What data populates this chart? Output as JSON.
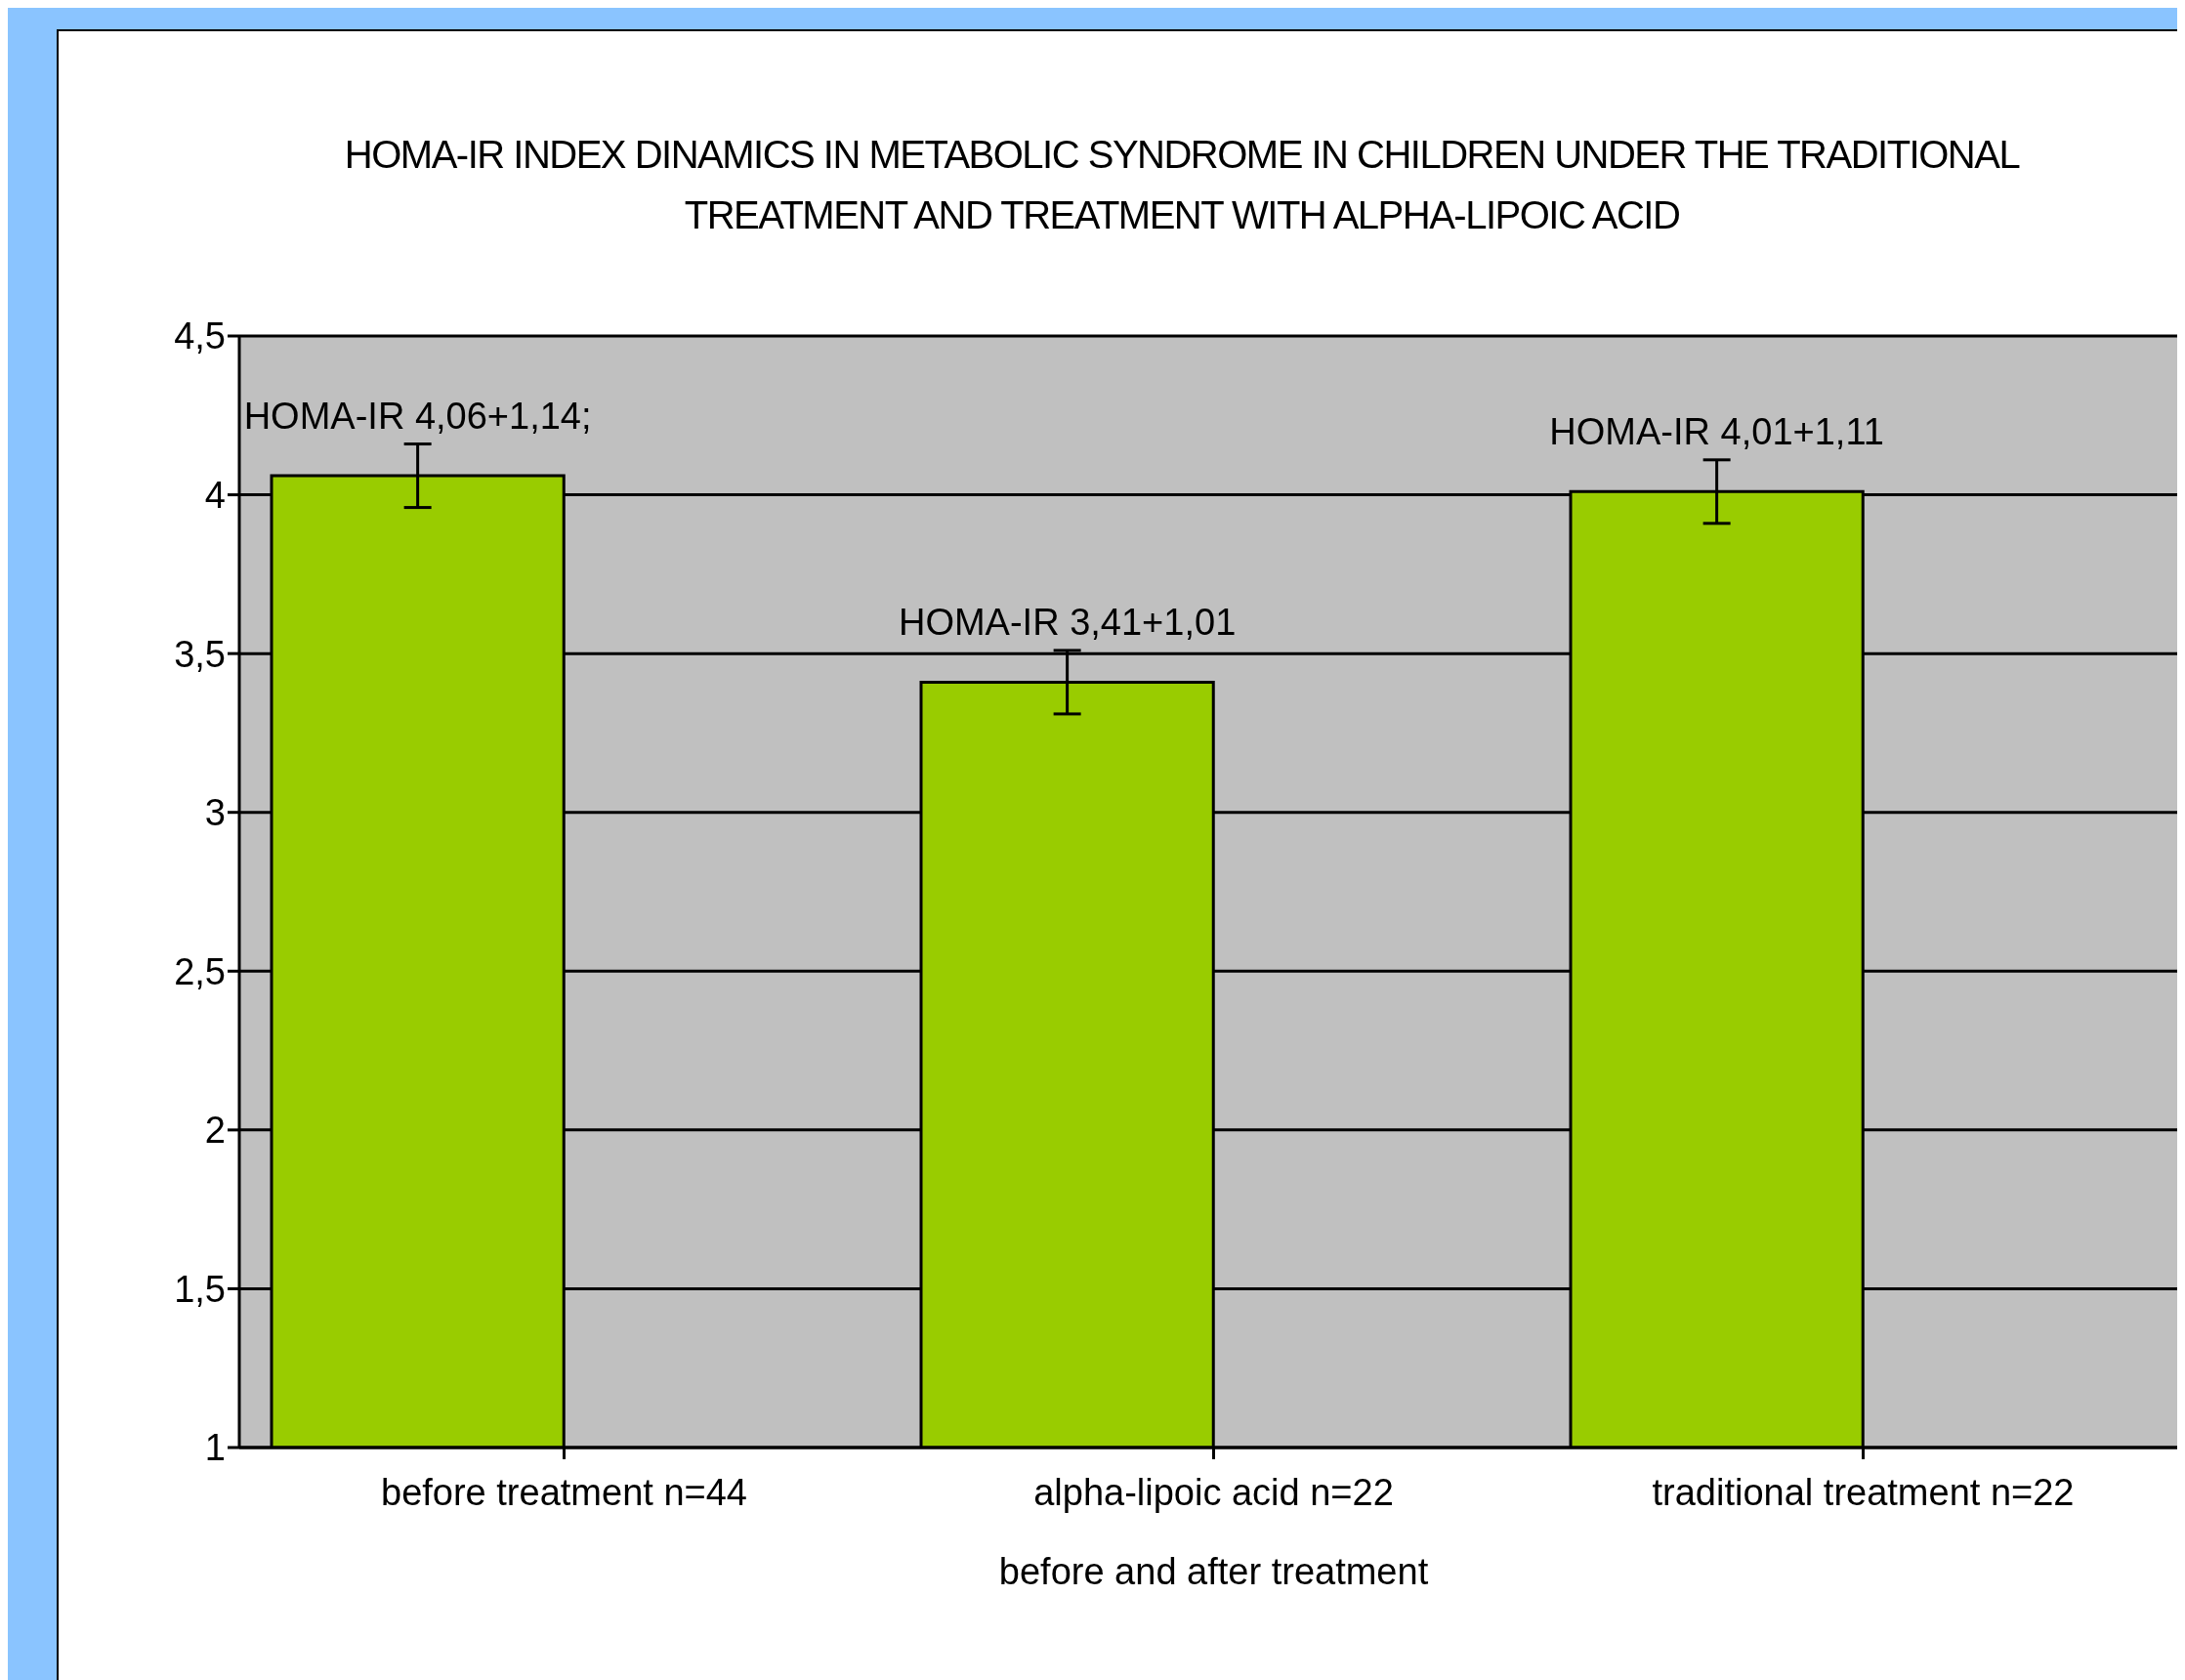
{
  "chart_data": {
    "type": "bar",
    "title": "HOMA-IR INDEX DINAMICS IN METABOLIC SYNDROME IN CHILDREN UNDER THE TRADITIONAL TREATMENT AND TREATMENT WITH ALPHA-LIPOIC ACID",
    "xlabel": "before and after treatment",
    "categories": [
      "before treatment n=44",
      "alpha-lipoic acid n=22",
      "traditional treatment n=22"
    ],
    "values": [
      4.06,
      3.41,
      4.01
    ],
    "errors": [
      0.1,
      0.1,
      0.1
    ],
    "value_labels": [
      "HOMA-IR 4,06+1,14;",
      "HOMA-IR 3,41+1,01",
      "HOMA-IR 4,01+1,11"
    ],
    "color": "#99cc00",
    "ylim": [
      1,
      4.5
    ],
    "yticks": [
      {
        "value": 1,
        "label": "1"
      },
      {
        "value": 1.5,
        "label": "1,5"
      },
      {
        "value": 2,
        "label": "2"
      },
      {
        "value": 2.5,
        "label": "2,5"
      },
      {
        "value": 3,
        "label": "3"
      },
      {
        "value": 3.5,
        "label": "3,5"
      },
      {
        "value": 4,
        "label": "4"
      },
      {
        "value": 4.5,
        "label": "4,5"
      }
    ],
    "grid": "y"
  }
}
